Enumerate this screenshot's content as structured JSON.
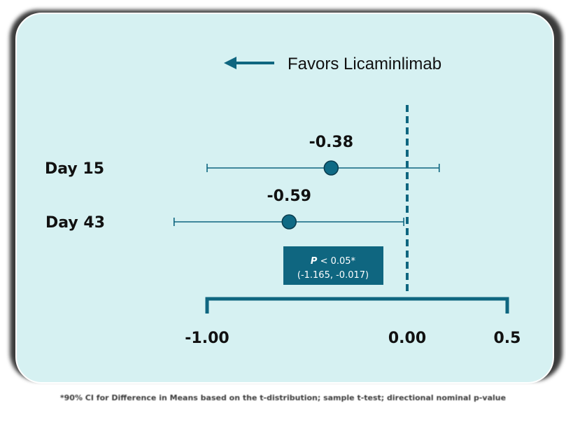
{
  "chart_data": {
    "type": "forest",
    "direction_label": "Favors Licaminlimab",
    "rows": [
      {
        "label": "Day 15",
        "estimate": -0.38,
        "estimate_label": "-0.38",
        "ci_low": -1.0,
        "ci_high": 0.16
      },
      {
        "label": "Day 43",
        "estimate": -0.59,
        "estimate_label": "-0.59",
        "ci_low": -1.165,
        "ci_high": -0.017
      }
    ],
    "reference_line": 0.0,
    "x_range": [
      -1.0,
      0.5
    ],
    "x_ticks": [
      {
        "value": -1.0,
        "label": "-1.00"
      },
      {
        "value": 0.0,
        "label": "0.00"
      },
      {
        "value": 0.5,
        "label": "0.5"
      }
    ],
    "annotation": {
      "p_label": "P",
      "p_text": " < 0.05*",
      "ci_text": "(-1.165, -0.017)"
    }
  },
  "footnote": "*90% CI for Difference in Means based on the t-distribution; sample t-test; directional nominal p-value",
  "colors": {
    "background": "#d6f1f2",
    "accent": "#0f6680",
    "marker": "#0f6a85",
    "text": "#111111"
  }
}
